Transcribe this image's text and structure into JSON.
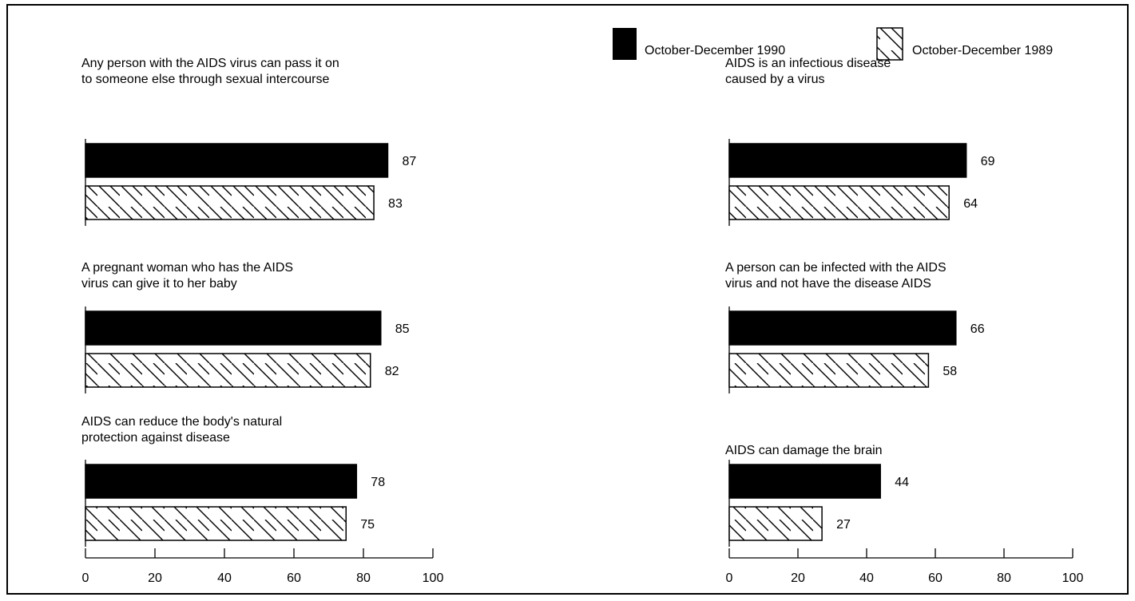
{
  "legend": [
    {
      "label": "October-December 1990",
      "fill": "solid"
    },
    {
      "label": "October-December 1989",
      "fill": "hatched"
    }
  ],
  "colors": {
    "bar_1990": "#000000",
    "bar_1989_hatch": "#000000",
    "background": "#ffffff"
  },
  "chart_data": {
    "type": "bar",
    "orientation": "horizontal",
    "xlim": [
      0,
      100
    ],
    "xticks": [
      0,
      20,
      40,
      60,
      80,
      100
    ],
    "series_names": [
      "October-December 1990",
      "October-December 1989"
    ],
    "panels": [
      {
        "question": [
          "Any person with the AIDS virus can pass it on",
          "to someone else through sexual intercourse"
        ],
        "values": [
          87,
          83
        ]
      },
      {
        "question": [
          "A pregnant woman who has the AIDS",
          "virus can give it to her baby"
        ],
        "values": [
          85,
          82
        ]
      },
      {
        "question": [
          "AIDS can reduce the body's natural",
          "protection against disease"
        ],
        "values": [
          78,
          75
        ]
      },
      {
        "question": [
          "AIDS is an infectious disease",
          "caused by a virus"
        ],
        "values": [
          69,
          64
        ]
      },
      {
        "question": [
          "A person can be infected with the AIDS",
          "virus and not have the disease AIDS"
        ],
        "values": [
          66,
          58
        ]
      },
      {
        "question": [
          "AIDS can damage the brain"
        ],
        "values": [
          44,
          27
        ]
      }
    ]
  }
}
